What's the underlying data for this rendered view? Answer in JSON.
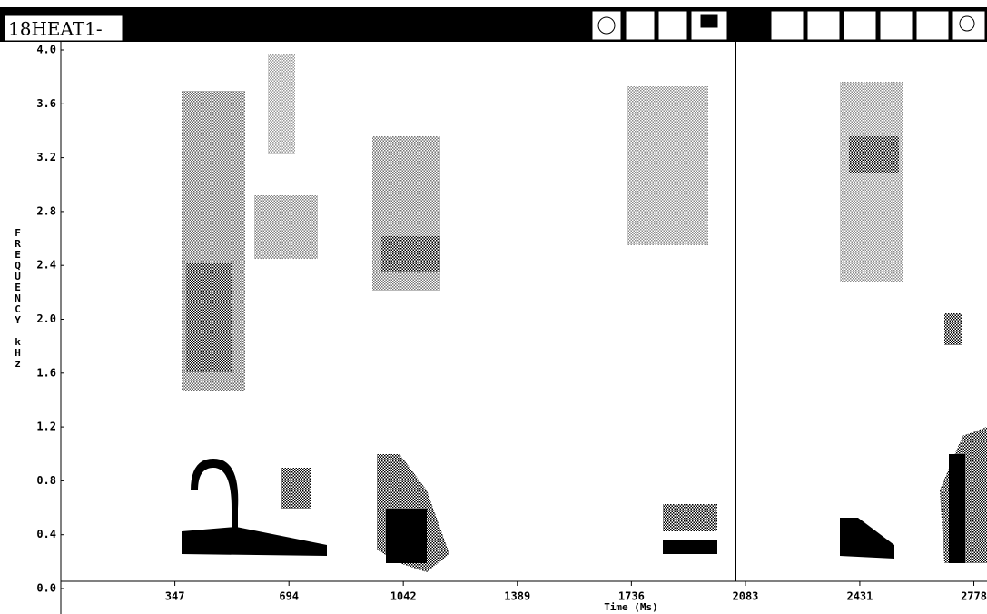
{
  "window": {
    "title": "18HEAT1-"
  },
  "chart_data": {
    "type": "spectrogram",
    "ylabel": "FREQUENCY kHz",
    "xlabel": "Time (Ms)",
    "xlim": [
      0,
      2818
    ],
    "ylim": [
      0,
      4.0
    ],
    "xticks": [
      347,
      694,
      1042,
      1389,
      1736,
      2083,
      2431,
      2778
    ],
    "yticks": [
      {
        "value": 0,
        "label": "0.0"
      },
      0.4,
      0.8,
      1.2,
      1.6,
      {
        "value": 2,
        "label": "2.0"
      },
      2.4,
      2.8,
      3.2,
      3.6,
      {
        "value": 4,
        "label": "4.0"
      }
    ]
  }
}
